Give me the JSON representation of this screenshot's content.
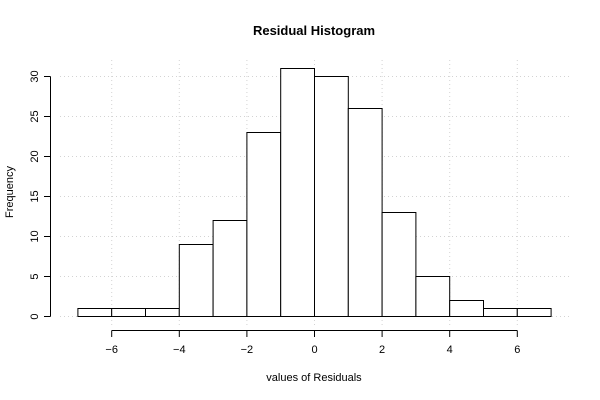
{
  "chart_data": {
    "type": "bar",
    "title": "Residual Histogram",
    "xlabel": "values of Residuals",
    "ylabel": "Frequency",
    "bins": [
      {
        "from": -7,
        "to": -6,
        "count": 1
      },
      {
        "from": -6,
        "to": -5,
        "count": 1
      },
      {
        "from": -5,
        "to": -4,
        "count": 1
      },
      {
        "from": -4,
        "to": -3,
        "count": 9
      },
      {
        "from": -3,
        "to": -2,
        "count": 12
      },
      {
        "from": -2,
        "to": -1,
        "count": 23
      },
      {
        "from": -1,
        "to": 0,
        "count": 31
      },
      {
        "from": 0,
        "to": 1,
        "count": 30
      },
      {
        "from": 1,
        "to": 2,
        "count": 26
      },
      {
        "from": 2,
        "to": 3,
        "count": 13
      },
      {
        "from": 3,
        "to": 4,
        "count": 5
      },
      {
        "from": 4,
        "to": 5,
        "count": 2
      },
      {
        "from": 5,
        "to": 6,
        "count": 1
      },
      {
        "from": 6,
        "to": 7,
        "count": 1
      }
    ],
    "xticks": [
      -6,
      -4,
      -2,
      0,
      2,
      4,
      6
    ],
    "yticks": [
      0,
      5,
      10,
      15,
      20,
      25,
      30
    ],
    "xlim": [
      -7,
      7
    ],
    "ylim": [
      0,
      31
    ],
    "grid": true,
    "colors": {
      "bar_fill": "#ffffff",
      "bar_stroke": "#000000",
      "grid": "#d3d3d3"
    }
  }
}
